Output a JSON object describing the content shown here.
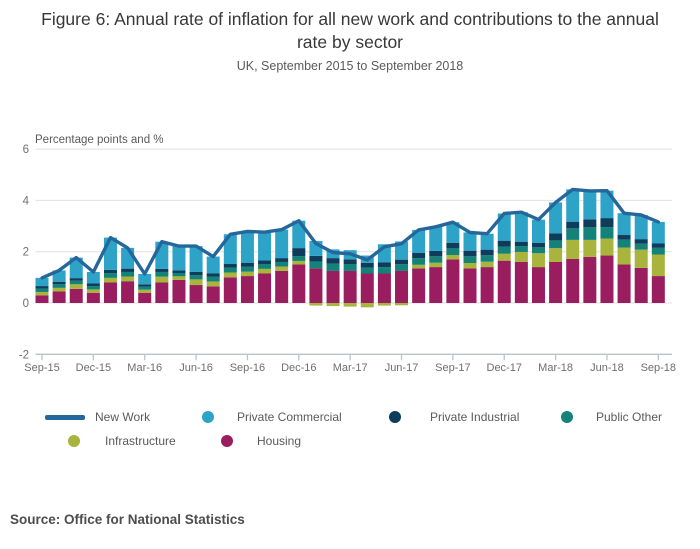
{
  "title": "Figure 6: Annual rate of inflation for all new work and contributions to the annual rate by sector",
  "subtitle": "UK, September 2015 to September 2018",
  "axis_top_label": "Percentage points and %",
  "source_text": "Source: Office for National Statistics",
  "legend": {
    "items": [
      {
        "label": "New Work",
        "color": "#25679b",
        "swatch": "line"
      },
      {
        "label": "Private Commercial",
        "color": "#2da3c8",
        "swatch": "circle"
      },
      {
        "label": "Private Industrial",
        "color": "#0e3d5c",
        "swatch": "circle"
      },
      {
        "label": "Public Other",
        "color": "#148278",
        "swatch": "circle"
      },
      {
        "label": "Infrastructure",
        "color": "#a8b43c",
        "swatch": "circle"
      },
      {
        "label": "Housing",
        "color": "#9a1d5f",
        "swatch": "circle"
      }
    ]
  },
  "chart_data": {
    "type": "bar",
    "subtype": "stacked-bars-with-line",
    "title": "Figure 6: Annual rate of inflation for all new work and contributions to the annual rate by sector",
    "xlabel": "",
    "ylabel": "Percentage points and %",
    "ylim": [
      -2,
      6
    ],
    "yticks": [
      -2,
      0,
      2,
      4,
      6
    ],
    "grid": true,
    "legend_position": "bottom",
    "x_tick_every": 3,
    "categories": [
      "Sep-15",
      "Oct-15",
      "Nov-15",
      "Dec-15",
      "Jan-16",
      "Feb-16",
      "Mar-16",
      "Apr-16",
      "May-16",
      "Jun-16",
      "Jul-16",
      "Aug-16",
      "Sep-16",
      "Oct-16",
      "Nov-16",
      "Dec-16",
      "Jan-17",
      "Feb-17",
      "Mar-17",
      "Apr-17",
      "May-17",
      "Jun-17",
      "Jul-17",
      "Aug-17",
      "Sep-17",
      "Oct-17",
      "Nov-17",
      "Dec-17",
      "Jan-18",
      "Feb-18",
      "Mar-18",
      "Apr-18",
      "May-18",
      "Jun-18",
      "Jul-18",
      "Aug-18",
      "Sep-18"
    ],
    "x_tick_labels": [
      "Sep-15",
      "Dec-15",
      "Mar-16",
      "Jun-16",
      "Sep-16",
      "Dec-16",
      "Mar-17",
      "Jun-17",
      "Sep-17",
      "Dec-17",
      "Mar-18",
      "Jun-18",
      "Sep-18"
    ],
    "series": [
      {
        "name": "Housing",
        "color": "#9a1d5f",
        "values": [
          0.3,
          0.45,
          0.55,
          0.4,
          0.8,
          0.85,
          0.4,
          0.8,
          0.9,
          0.7,
          0.65,
          1.0,
          1.05,
          1.15,
          1.25,
          1.5,
          1.35,
          1.25,
          1.25,
          1.15,
          1.15,
          1.25,
          1.35,
          1.4,
          1.7,
          1.35,
          1.4,
          1.65,
          1.6,
          1.4,
          1.6,
          1.72,
          1.8,
          1.85,
          1.5,
          1.37,
          1.05
        ]
      },
      {
        "name": "Infrastructure",
        "color": "#a8b43c",
        "values": [
          0.13,
          0.14,
          0.18,
          0.13,
          0.18,
          0.18,
          0.12,
          0.23,
          0.14,
          0.22,
          0.19,
          0.19,
          0.17,
          0.18,
          0.17,
          0.14,
          -0.1,
          -0.12,
          -0.14,
          -0.17,
          -0.1,
          -0.09,
          0.14,
          0.17,
          0.17,
          0.21,
          0.21,
          0.27,
          0.39,
          0.54,
          0.54,
          0.74,
          0.66,
          0.66,
          0.66,
          0.71,
          0.84
        ]
      },
      {
        "name": "Public Other",
        "color": "#148278",
        "values": [
          0.13,
          0.14,
          0.14,
          0.13,
          0.18,
          0.18,
          0.12,
          0.18,
          0.13,
          0.17,
          0.18,
          0.19,
          0.19,
          0.19,
          0.18,
          0.19,
          0.27,
          0.28,
          0.27,
          0.23,
          0.25,
          0.26,
          0.26,
          0.25,
          0.26,
          0.26,
          0.25,
          0.28,
          0.23,
          0.23,
          0.3,
          0.45,
          0.49,
          0.45,
          0.31,
          0.23,
          0.26
        ]
      },
      {
        "name": "Private Industrial",
        "color": "#0e3d5c",
        "values": [
          0.1,
          0.1,
          0.1,
          0.1,
          0.13,
          0.13,
          0.09,
          0.12,
          0.1,
          0.12,
          0.13,
          0.14,
          0.15,
          0.14,
          0.15,
          0.31,
          0.22,
          0.22,
          0.18,
          0.19,
          0.19,
          0.18,
          0.21,
          0.21,
          0.22,
          0.22,
          0.22,
          0.23,
          0.17,
          0.18,
          0.28,
          0.26,
          0.31,
          0.35,
          0.18,
          0.18,
          0.17
        ]
      },
      {
        "name": "Private Commercial",
        "color": "#2da3c8",
        "values": [
          0.32,
          0.44,
          0.8,
          0.45,
          1.26,
          0.81,
          0.4,
          1.06,
          0.95,
          1.01,
          0.66,
          1.16,
          1.23,
          1.1,
          1.11,
          1.07,
          0.58,
          0.34,
          0.36,
          0.28,
          0.7,
          0.71,
          0.89,
          0.94,
          0.8,
          0.71,
          0.62,
          1.06,
          1.15,
          0.9,
          1.2,
          1.26,
          1.11,
          1.07,
          0.85,
          0.94,
          0.84
        ]
      }
    ],
    "line": {
      "name": "New Work",
      "color": "#25679b",
      "values": [
        0.98,
        1.27,
        1.77,
        1.21,
        2.55,
        2.15,
        1.13,
        2.39,
        2.22,
        2.22,
        1.81,
        2.68,
        2.79,
        2.76,
        2.86,
        3.21,
        2.32,
        1.97,
        1.92,
        1.68,
        2.19,
        2.31,
        2.85,
        2.97,
        3.15,
        2.75,
        2.7,
        3.49,
        3.54,
        3.25,
        3.92,
        4.43,
        4.37,
        4.38,
        3.5,
        3.43,
        3.16
      ]
    },
    "colors": {
      "gridline": "#e0e0e0",
      "axis": "#b9c3ca",
      "tick_label": "#707070"
    }
  }
}
